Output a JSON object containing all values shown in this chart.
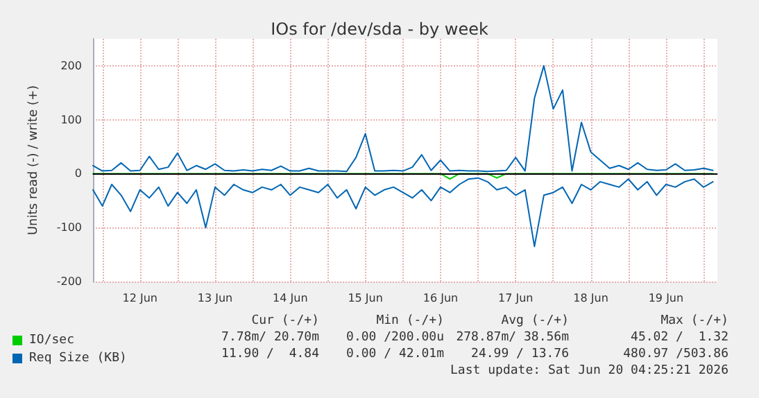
{
  "chart_data": {
    "type": "line",
    "title": "IOs for /dev/sda - by week",
    "ylabel": "Units read (-) / write (+)",
    "x": [
      "2026-06-11T21:00",
      "2026-06-12T00:00",
      "2026-06-12T03:00",
      "2026-06-12T06:00",
      "2026-06-12T09:00",
      "2026-06-12T12:00",
      "2026-06-12T15:00",
      "2026-06-12T18:00",
      "2026-06-12T21:00",
      "2026-06-13T00:00",
      "2026-06-13T03:00",
      "2026-06-13T06:00",
      "2026-06-13T09:00",
      "2026-06-13T12:00",
      "2026-06-13T15:00",
      "2026-06-13T18:00",
      "2026-06-13T21:00",
      "2026-06-14T00:00",
      "2026-06-14T03:00",
      "2026-06-14T06:00",
      "2026-06-14T09:00",
      "2026-06-14T12:00",
      "2026-06-14T15:00",
      "2026-06-14T18:00",
      "2026-06-14T21:00",
      "2026-06-15T00:00",
      "2026-06-15T03:00",
      "2026-06-15T06:00",
      "2026-06-15T09:00",
      "2026-06-15T12:00",
      "2026-06-15T15:00",
      "2026-06-15T18:00",
      "2026-06-15T21:00",
      "2026-06-16T00:00",
      "2026-06-16T03:00",
      "2026-06-16T06:00",
      "2026-06-16T09:00",
      "2026-06-16T12:00",
      "2026-06-16T15:00",
      "2026-06-16T18:00",
      "2026-06-16T21:00",
      "2026-06-17T00:00",
      "2026-06-17T03:00",
      "2026-06-17T06:00",
      "2026-06-17T09:00",
      "2026-06-17T12:00",
      "2026-06-17T15:00",
      "2026-06-17T18:00",
      "2026-06-17T21:00",
      "2026-06-18T00:00",
      "2026-06-18T03:00",
      "2026-06-18T06:00",
      "2026-06-18T09:00",
      "2026-06-18T12:00",
      "2026-06-18T15:00",
      "2026-06-18T18:00",
      "2026-06-18T21:00",
      "2026-06-19T00:00",
      "2026-06-19T03:00",
      "2026-06-19T06:00",
      "2026-06-19T09:00",
      "2026-06-19T12:00",
      "2026-06-19T15:00",
      "2026-06-19T18:00",
      "2026-06-19T21:00",
      "2026-06-20T00:00",
      "2026-06-20T03:00"
    ],
    "series": [
      {
        "name": "IO/sec",
        "color": "#00cc00",
        "values": [
          0,
          0,
          0,
          0,
          0,
          0,
          0,
          0,
          0,
          0,
          0,
          0,
          0,
          0,
          0,
          0,
          0,
          0,
          0,
          0,
          0,
          0,
          0,
          0,
          0,
          0,
          0,
          0,
          0,
          0,
          0,
          0,
          0,
          0,
          0,
          0,
          0,
          0,
          -10,
          0,
          0,
          0,
          0,
          -8,
          0,
          0,
          0,
          0,
          0,
          0,
          0,
          0,
          0,
          0,
          0,
          0,
          0,
          0,
          0,
          0,
          0,
          0,
          0,
          0,
          0,
          0,
          0
        ]
      },
      {
        "name": "Req Size (KB)",
        "color": "#0066b3",
        "values": [
          15,
          5,
          6,
          20,
          5,
          6,
          32,
          8,
          12,
          38,
          6,
          15,
          8,
          18,
          6,
          5,
          7,
          5,
          8,
          6,
          14,
          5,
          5,
          10,
          5,
          5,
          5,
          4,
          30,
          74,
          5,
          5,
          6,
          5,
          12,
          35,
          6,
          25,
          5,
          6,
          5,
          5,
          4,
          5,
          6,
          30,
          5,
          140,
          200,
          120,
          155,
          5,
          95,
          40,
          25,
          10,
          15,
          8,
          20,
          8,
          6,
          7,
          18,
          6,
          7,
          10,
          6
        ]
      },
      {
        "color": "#0066b3",
        "values": [
          -30,
          -60,
          -20,
          -40,
          -70,
          -30,
          -45,
          -25,
          -60,
          -35,
          -55,
          -30,
          -100,
          -25,
          -40,
          -20,
          -30,
          -35,
          -25,
          -30,
          -20,
          -40,
          -25,
          -30,
          -35,
          -20,
          -45,
          -30,
          -65,
          -25,
          -40,
          -30,
          -25,
          -35,
          -45,
          -30,
          -50,
          -25,
          -35,
          -20,
          -10,
          -8,
          -15,
          -30,
          -25,
          -40,
          -30,
          -135,
          -40,
          -35,
          -25,
          -55,
          -20,
          -30,
          -15,
          -20,
          -25,
          -10,
          -30,
          -15,
          -40,
          -20,
          -25,
          -15,
          -10,
          -25,
          -15
        ]
      }
    ],
    "xlim": [
      "2026-06-11T21:00",
      "2026-06-20T04:25"
    ],
    "xticks": [
      {
        "value": "2026-06-12T00:00",
        "label": null
      },
      {
        "value": "2026-06-12T12:00",
        "label": "12 Jun"
      },
      {
        "value": "2026-06-13T00:00",
        "label": null
      },
      {
        "value": "2026-06-13T12:00",
        "label": "13 Jun"
      },
      {
        "value": "2026-06-14T00:00",
        "label": null
      },
      {
        "value": "2026-06-14T12:00",
        "label": "14 Jun"
      },
      {
        "value": "2026-06-15T00:00",
        "label": null
      },
      {
        "value": "2026-06-15T12:00",
        "label": "15 Jun"
      },
      {
        "value": "2026-06-16T00:00",
        "label": null
      },
      {
        "value": "2026-06-16T12:00",
        "label": "16 Jun"
      },
      {
        "value": "2026-06-17T00:00",
        "label": null
      },
      {
        "value": "2026-06-17T12:00",
        "label": "17 Jun"
      },
      {
        "value": "2026-06-18T00:00",
        "label": null
      },
      {
        "value": "2026-06-18T12:00",
        "label": "18 Jun"
      },
      {
        "value": "2026-06-19T00:00",
        "label": null
      },
      {
        "value": "2026-06-19T12:00",
        "label": "19 Jun"
      },
      {
        "value": "2026-06-20T00:00",
        "label": null
      }
    ],
    "ylim": [
      -200,
      250
    ],
    "yticks": [
      -200,
      -100,
      0,
      100,
      200
    ],
    "ref_lines": [
      {
        "axis": "y",
        "value": 0,
        "color": "#000000"
      }
    ],
    "grid": true,
    "legend": "bottom",
    "marker": "none",
    "line_style": "solid",
    "annotations": [
      "Cur (-/+)",
      "Min (-/+)",
      "Avg (-/+)",
      "Max (-/+)",
      "7.78m/ 20.70m",
      "0.00 /200.00u",
      "278.87m/ 38.56m",
      "45.02 /  1.32",
      "11.90 /  4.84",
      "0.00 / 42.01m",
      "24.99 / 13.76",
      "480.97 /503.86",
      "Last update: Sat Jun 20 04:25:21 2026"
    ]
  }
}
